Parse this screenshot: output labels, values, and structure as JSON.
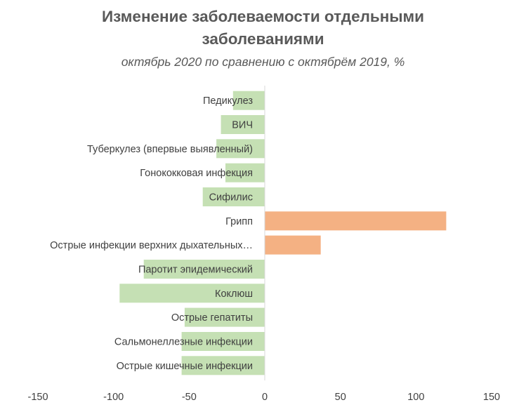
{
  "chart_data": {
    "type": "bar",
    "orientation": "horizontal",
    "title_line1": "Изменение заболеваемости отдельными",
    "title_line2": "заболеваниями",
    "subtitle": "октябрь 2020 по сравнению с октябрём 2019, %",
    "categories": [
      "Педикулез",
      "ВИЧ",
      "Туберкулез (впервые выявленный)",
      "Гонококковая инфекция",
      "Сифилис",
      "Грипп",
      "Острые инфекции верхних дыхательных…",
      "Паротит эпидемический",
      "Коклюш",
      "Острые гепатиты",
      "Сальмонеллезные инфекции",
      "Острые кишечные инфекции"
    ],
    "values": [
      -21,
      -29,
      -32,
      -26,
      -41,
      120,
      37,
      -80,
      -96,
      -53,
      -55,
      -55
    ],
    "xlim": [
      -150,
      150
    ],
    "xticks": [
      -150,
      -100,
      -50,
      0,
      50,
      100,
      150
    ],
    "xtick_labels": [
      "-150",
      "-100",
      "-50",
      "0",
      "50",
      "100",
      "150"
    ],
    "colors": {
      "negative": "#c5e0b4",
      "positive": "#f4b183",
      "axis": "#d9d9d9",
      "text": "#404040"
    },
    "grid": false,
    "legend": "none"
  }
}
